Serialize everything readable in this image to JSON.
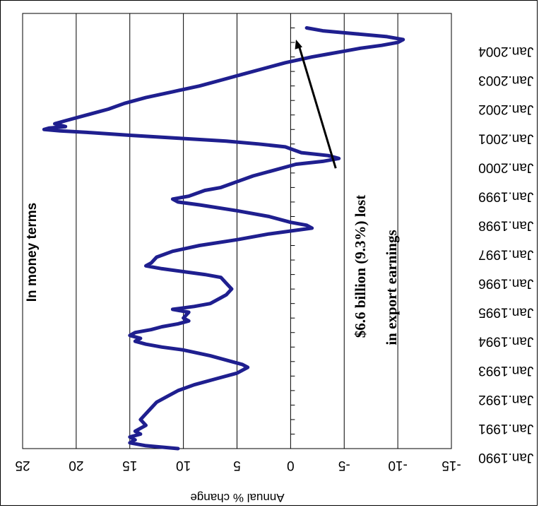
{
  "chart_data": {
    "type": "line",
    "orientation": "rotated-180",
    "title": "",
    "ylabel": "Annual % change",
    "xlabel": "",
    "ylim": [
      -15,
      25
    ],
    "yticks": [
      "25",
      "20",
      "15",
      "10",
      "5",
      "0",
      "-5",
      "-10",
      "-15"
    ],
    "ytick_values": [
      25,
      20,
      15,
      10,
      5,
      0,
      -5,
      -10,
      -15
    ],
    "xtick_labels": [
      "Jan.1990",
      "Jan.1991",
      "Jan.1992",
      "Jan.1993",
      "Jan.1994",
      "Jan.1995",
      "Jan.1996",
      "Jan.1997",
      "Jan.1998",
      "Jan.1999",
      "Jan.2000",
      "Jan.2001",
      "Jan.2002",
      "Jan.2003",
      "Jan.2004"
    ],
    "x_range_years": [
      1990,
      2005
    ],
    "grid": "horizontal-value-lines",
    "series_color": "#1f1f8f",
    "series": [
      {
        "name": "",
        "points": [
          [
            1990.0,
            10.5
          ],
          [
            1990.1,
            13.5
          ],
          [
            1990.2,
            15.0
          ],
          [
            1990.3,
            14.5
          ],
          [
            1990.4,
            15.0
          ],
          [
            1990.5,
            14.0
          ],
          [
            1990.6,
            14.5
          ],
          [
            1990.8,
            13.5
          ],
          [
            1991.0,
            14.0
          ],
          [
            1991.2,
            13.5
          ],
          [
            1991.4,
            13.0
          ],
          [
            1991.6,
            12.5
          ],
          [
            1991.8,
            11.5
          ],
          [
            1992.0,
            10.5
          ],
          [
            1992.2,
            9.0
          ],
          [
            1992.4,
            7.0
          ],
          [
            1992.6,
            5.0
          ],
          [
            1992.8,
            4.0
          ],
          [
            1992.9,
            4.5
          ],
          [
            1993.0,
            5.5
          ],
          [
            1993.2,
            7.5
          ],
          [
            1993.4,
            10.0
          ],
          [
            1993.5,
            12.0
          ],
          [
            1993.6,
            13.5
          ],
          [
            1993.7,
            14.5
          ],
          [
            1993.8,
            14.0
          ],
          [
            1993.9,
            15.0
          ],
          [
            1994.0,
            14.5
          ],
          [
            1994.1,
            13.0
          ],
          [
            1994.2,
            12.0
          ],
          [
            1994.3,
            10.5
          ],
          [
            1994.4,
            9.5
          ],
          [
            1994.5,
            10.0
          ],
          [
            1994.7,
            9.5
          ],
          [
            1994.8,
            11.0
          ],
          [
            1994.9,
            9.0
          ],
          [
            1995.0,
            7.5
          ],
          [
            1995.2,
            6.5
          ],
          [
            1995.3,
            6.0
          ],
          [
            1995.5,
            5.5
          ],
          [
            1995.7,
            6.0
          ],
          [
            1995.9,
            6.5
          ],
          [
            1996.0,
            8.0
          ],
          [
            1996.1,
            10.0
          ],
          [
            1996.2,
            12.0
          ],
          [
            1996.3,
            13.5
          ],
          [
            1996.4,
            13.0
          ],
          [
            1996.6,
            12.5
          ],
          [
            1996.8,
            11.0
          ],
          [
            1997.0,
            8.5
          ],
          [
            1997.2,
            5.0
          ],
          [
            1997.4,
            2.0
          ],
          [
            1997.5,
            0.0
          ],
          [
            1997.6,
            -2.0
          ],
          [
            1997.7,
            -1.5
          ],
          [
            1997.8,
            0.0
          ],
          [
            1998.0,
            2.0
          ],
          [
            1998.2,
            5.0
          ],
          [
            1998.4,
            8.5
          ],
          [
            1998.5,
            10.5
          ],
          [
            1998.6,
            11.0
          ],
          [
            1998.7,
            9.5
          ],
          [
            1998.9,
            8.0
          ],
          [
            1999.0,
            6.5
          ],
          [
            1999.2,
            5.0
          ],
          [
            1999.4,
            3.5
          ],
          [
            1999.6,
            1.5
          ],
          [
            1999.8,
            -0.5
          ],
          [
            1999.9,
            -3.0
          ],
          [
            2000.0,
            -4.5
          ],
          [
            2000.1,
            -3.5
          ],
          [
            2000.2,
            -1.0
          ],
          [
            2000.4,
            0.5
          ],
          [
            2000.5,
            3.0
          ],
          [
            2000.6,
            6.0
          ],
          [
            2000.7,
            10.5
          ],
          [
            2000.8,
            15.0
          ],
          [
            2000.9,
            19.0
          ],
          [
            2000.95,
            21.5
          ],
          [
            2001.0,
            23.0
          ],
          [
            2001.05,
            22.5
          ],
          [
            2001.1,
            21.0
          ],
          [
            2001.2,
            22.0
          ],
          [
            2001.3,
            21.0
          ],
          [
            2001.5,
            19.0
          ],
          [
            2001.7,
            17.0
          ],
          [
            2001.9,
            15.5
          ],
          [
            2002.1,
            13.5
          ],
          [
            2002.3,
            11.0
          ],
          [
            2002.5,
            8.5
          ],
          [
            2002.7,
            6.5
          ],
          [
            2002.9,
            4.5
          ],
          [
            2003.1,
            2.5
          ],
          [
            2003.3,
            0.5
          ],
          [
            2003.5,
            -2.0
          ],
          [
            2003.6,
            -3.5
          ],
          [
            2003.7,
            -5.0
          ],
          [
            2003.8,
            -6.5
          ],
          [
            2003.9,
            -8.5
          ],
          [
            2004.0,
            -10.0
          ],
          [
            2004.1,
            -10.5
          ],
          [
            2004.2,
            -9.0
          ],
          [
            2004.3,
            -6.0
          ],
          [
            2004.4,
            -3.0
          ],
          [
            2004.5,
            -1.5
          ]
        ]
      }
    ],
    "annotations": {
      "money_terms": "In money terms",
      "loss_line1": "$6.6 billion (9.3%) lost",
      "loss_line2": "in export earnings"
    },
    "arrow": {
      "from": [
        2000.15,
        -5.0
      ],
      "to": [
        2004.1,
        -0.5
      ]
    }
  }
}
